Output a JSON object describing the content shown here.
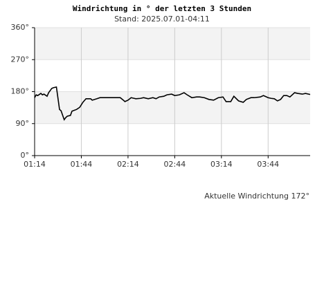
{
  "chart_data": {
    "type": "line",
    "title": "Windrichtung in ° der letzten 3 Stunden",
    "subtitle": "Stand: 2025.07.01-04:11",
    "annotation": "Aktuelle Windrichtung 172°",
    "x": [
      74,
      75,
      76,
      78,
      79,
      80,
      82,
      83,
      85,
      86,
      88,
      90,
      91,
      93,
      94,
      95,
      97,
      98,
      101,
      103,
      105,
      107,
      110,
      111,
      114,
      116,
      129,
      131,
      132,
      134,
      136,
      138,
      139,
      142,
      144,
      147,
      150,
      152,
      154,
      157,
      159,
      162,
      164,
      167,
      170,
      172,
      175,
      178,
      180,
      183,
      186,
      189,
      192,
      195,
      197,
      200,
      202,
      205,
      208,
      210,
      213,
      215,
      219,
      221,
      224,
      226,
      228,
      230,
      232,
      234,
      236,
      238,
      241,
      243,
      246,
      248,
      251
    ],
    "series": [
      {
        "name": "Windrichtung",
        "color": "#000000",
        "values": [
          163,
          171,
          169,
          175,
          171,
          173,
          167,
          177,
          189,
          191,
          193,
          130,
          126,
          101,
          107,
          111,
          113,
          125,
          130,
          136,
          150,
          160,
          160,
          156,
          160,
          163,
          163,
          156,
          152,
          156,
          163,
          161,
          160,
          161,
          163,
          160,
          163,
          160,
          165,
          167,
          171,
          173,
          169,
          171,
          177,
          171,
          163,
          165,
          165,
          163,
          158,
          156,
          163,
          165,
          152,
          152,
          167,
          154,
          150,
          158,
          163,
          163,
          165,
          169,
          163,
          161,
          160,
          154,
          158,
          169,
          169,
          165,
          177,
          175,
          173,
          175,
          172
        ]
      }
    ],
    "xlim": [
      74,
      251
    ],
    "xticks": [
      {
        "value": 74,
        "label": "01:14"
      },
      {
        "value": 104,
        "label": "01:44"
      },
      {
        "value": 134,
        "label": "02:14"
      },
      {
        "value": 164,
        "label": "02:44"
      },
      {
        "value": 194,
        "label": "03:14"
      },
      {
        "value": 224,
        "label": "03:44"
      }
    ],
    "ylim": [
      0,
      360
    ],
    "yticks": [
      {
        "value": 0,
        "label": "0°"
      },
      {
        "value": 90,
        "label": "90°"
      },
      {
        "value": 180,
        "label": "180°"
      },
      {
        "value": 270,
        "label": "270°"
      },
      {
        "value": 360,
        "label": "360°"
      }
    ],
    "grid": true
  }
}
